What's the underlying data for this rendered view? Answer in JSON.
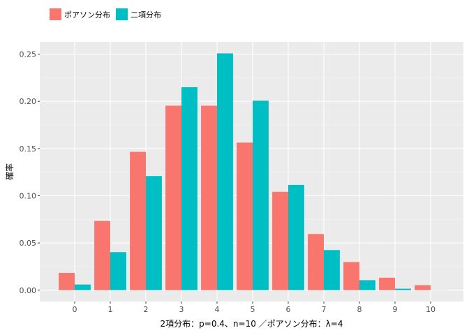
{
  "chart_data": {
    "type": "bar",
    "title": "",
    "xlabel": "2項分布：p=0.4、n=10 ／ポアソン分布：λ=4",
    "ylabel": "確率",
    "categories": [
      "0",
      "1",
      "2",
      "3",
      "4",
      "5",
      "6",
      "7",
      "8",
      "9",
      "10"
    ],
    "ylim": [
      -0.012,
      0.263
    ],
    "yticks": [
      "0.00",
      "0.05",
      "0.10",
      "0.15",
      "0.20",
      "0.25"
    ],
    "grid": true,
    "legend_position": "top-left",
    "series": [
      {
        "name": "ポアソン分布",
        "color": "#F8766D",
        "values": [
          0.0183,
          0.0733,
          0.1465,
          0.1954,
          0.1954,
          0.1563,
          0.1042,
          0.0595,
          0.0298,
          0.0132,
          0.0053
        ]
      },
      {
        "name": "二項分布",
        "color": "#00BFC4",
        "values": [
          0.006,
          0.0403,
          0.1209,
          0.215,
          0.2508,
          0.2007,
          0.1115,
          0.0425,
          0.0106,
          0.0016,
          0.0001
        ]
      }
    ]
  }
}
